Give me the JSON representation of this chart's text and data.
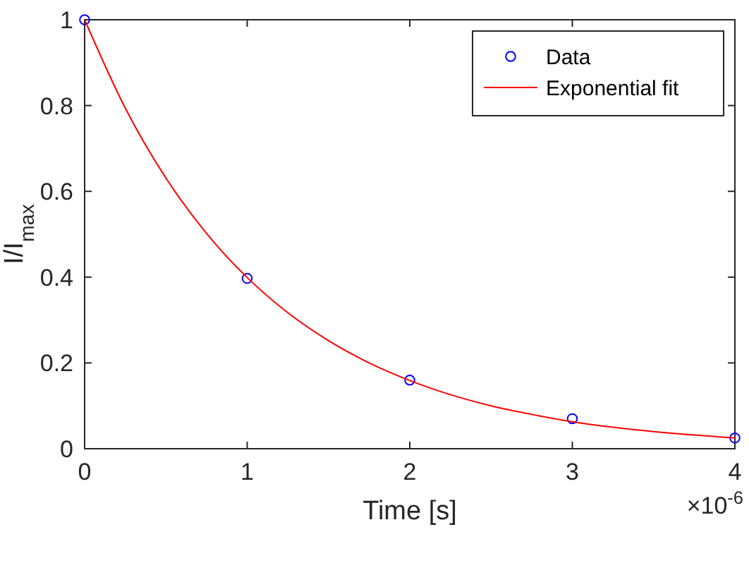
{
  "chart_data": {
    "type": "scatter",
    "xlabel": "Time [s]",
    "ylabel": "I/I$_{max}$",
    "annotations": [
      "×10$^{-6}$"
    ],
    "xlim": [
      0,
      4
    ],
    "xticks": [
      0,
      1,
      2,
      3,
      4
    ],
    "ylim": [
      0,
      1
    ],
    "yticks": [
      0,
      0.2,
      0.4,
      0.6,
      0.8,
      1
    ],
    "grid": false,
    "legend": "top right",
    "series": [
      {
        "name": "Data",
        "type": "scatter",
        "marker": "circle",
        "color": "#0000ff",
        "x": [
          0,
          1,
          2,
          3,
          4
        ],
        "values": [
          1,
          0.397,
          0.16,
          0.07,
          0.025
        ]
      },
      {
        "name": "Exponential fit",
        "type": "line",
        "marker": "none",
        "line_style": "solid",
        "color": "#ff0000",
        "x": [
          0,
          0.25,
          0.5,
          0.75,
          1,
          1.25,
          1.5,
          1.75,
          2,
          2.25,
          2.5,
          2.75,
          3,
          3.25,
          3.5,
          3.75,
          4
        ],
        "values": [
          1,
          0.794,
          0.631,
          0.502,
          0.399,
          0.317,
          0.252,
          0.2,
          0.159,
          0.126,
          0.1,
          0.08,
          0.063,
          0.05,
          0.04,
          0.032,
          0.025
        ]
      }
    ]
  }
}
